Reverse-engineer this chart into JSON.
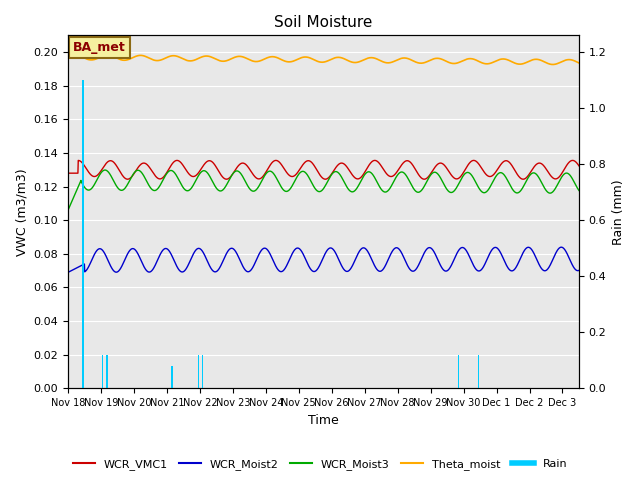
{
  "title": "Soil Moisture",
  "ylabel_left": "VWC (m3/m3)",
  "ylabel_right": "Rain (mm)",
  "xlabel": "Time",
  "annotation_text": "BA_met",
  "n_days": 15.5,
  "ylim_left": [
    0.0,
    0.21
  ],
  "ylim_right": [
    0.0,
    1.26
  ],
  "x_tick_labels": [
    "Nov 18",
    "Nov 19",
    "Nov 20",
    "Nov 21",
    "Nov 22",
    "Nov 23",
    "Nov 24",
    "Nov 25",
    "Nov 26",
    "Nov 27",
    "Nov 28",
    "Nov 29",
    "Nov 30",
    "Dec 1",
    "Dec 2",
    "Dec 3"
  ],
  "background_color": "#e8e8e8",
  "line_colors": {
    "WCR_VMC1": "#cc0000",
    "WCR_Moist2": "#0000cc",
    "WCR_Moist3": "#00aa00",
    "Theta_moist": "#ffaa00",
    "Rain": "#00ccff"
  },
  "yticks_left": [
    0.0,
    0.02,
    0.04,
    0.06,
    0.08,
    0.1,
    0.12,
    0.14,
    0.16,
    0.18,
    0.2
  ],
  "yticks_right": [
    0.0,
    0.2,
    0.4,
    0.6,
    0.8,
    1.0,
    1.2
  ],
  "rain_t": [
    0.45,
    1.05,
    1.18,
    3.15,
    3.95,
    4.08,
    11.85,
    12.45
  ],
  "rain_v": [
    1.1,
    0.12,
    0.12,
    0.08,
    0.12,
    0.12,
    0.12,
    0.12
  ],
  "legend_labels": [
    "WCR_VMC1",
    "WCR_Moist2",
    "WCR_Moist3",
    "Theta_moist",
    "Rain"
  ]
}
